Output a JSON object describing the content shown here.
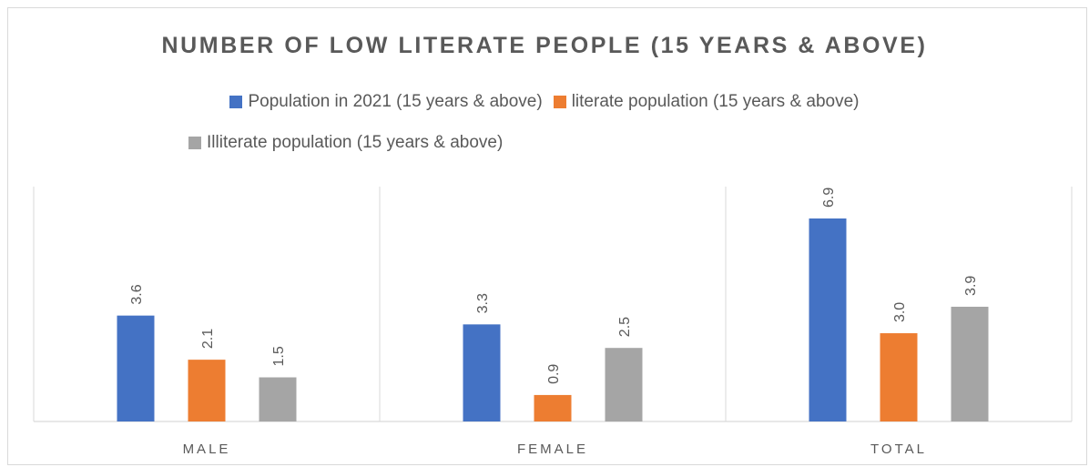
{
  "chart_data": {
    "type": "bar",
    "title": "NUMBER OF LOW LITERATE PEOPLE (15 YEARS & ABOVE)",
    "categories": [
      "MALE",
      "FEMALE",
      "TOTAL"
    ],
    "series": [
      {
        "name": "Population in 2021 (15 years & above)",
        "color": "#4472c4",
        "values": [
          3.6,
          3.3,
          6.9
        ],
        "labels": [
          "3.6",
          "3.3",
          "6.9"
        ]
      },
      {
        "name": "literate population (15 years & above)",
        "color": "#ed7d31",
        "values": [
          2.1,
          0.9,
          3.0
        ],
        "labels": [
          "2.1",
          "0.9",
          "3.0"
        ]
      },
      {
        "name": "Illiterate population (15 years & above)",
        "color": "#a5a5a5",
        "values": [
          1.5,
          2.5,
          3.9
        ],
        "labels": [
          "1.5",
          "2.5",
          "3.9"
        ]
      }
    ],
    "ylim": [
      0,
      8
    ],
    "grid": "vertical category separators",
    "legend_position": "top"
  }
}
